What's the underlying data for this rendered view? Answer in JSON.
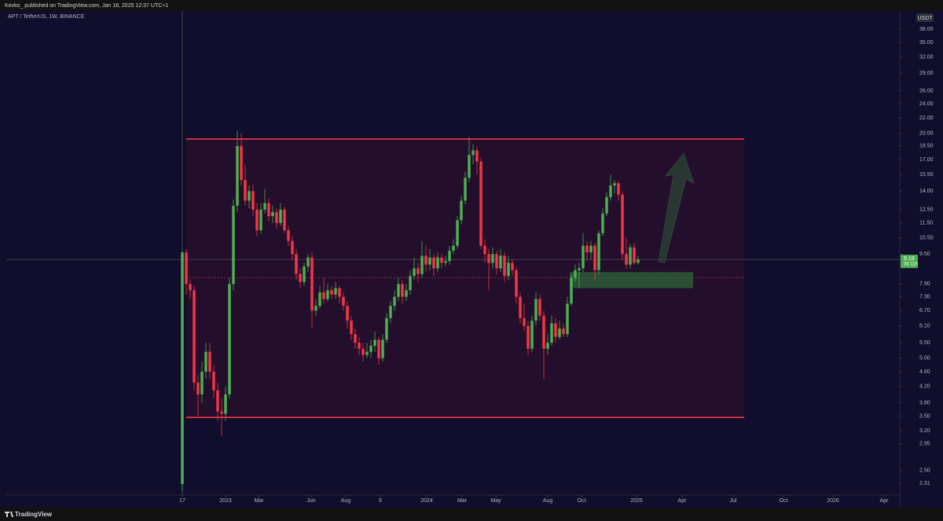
{
  "header": {
    "publisher": "Kevko_ published on TradingView.com, Jan 18, 2025 12:37 UTC+1"
  },
  "footer": {
    "brand": "TradingView"
  },
  "chart_data": {
    "type": "candlestick",
    "title": "APT / TetherUS, 1W, BINANCE",
    "y_unit": "USDT",
    "log_scale": true,
    "up_color": "#4caf50",
    "down_color": "#f23645",
    "countdown": "3d 11h",
    "ylim": [
      2.15,
      42.3
    ],
    "xlim": [
      -44.8,
      182
    ],
    "yticks": [
      {
        "value": 38,
        "label": "38.00"
      },
      {
        "value": 35,
        "label": "35.00"
      },
      {
        "value": 32,
        "label": "32.00"
      },
      {
        "value": 29,
        "label": "29.00"
      },
      {
        "value": 26,
        "label": "26.00"
      },
      {
        "value": 24,
        "label": "24.00"
      },
      {
        "value": 22,
        "label": "22.00"
      },
      {
        "value": 20,
        "label": "20.00"
      },
      {
        "value": 18.5,
        "label": "18.50"
      },
      {
        "value": 17,
        "label": "17.00"
      },
      {
        "value": 15.5,
        "label": "15.50"
      },
      {
        "value": 14,
        "label": "14.00"
      },
      {
        "value": 12.5,
        "label": "12.50"
      },
      {
        "value": 11.5,
        "label": "11.50"
      },
      {
        "value": 10.5,
        "label": "10.50"
      },
      {
        "value": 9.5,
        "label": "9.50"
      },
      {
        "value": 7.9,
        "label": "7.90"
      },
      {
        "value": 7.3,
        "label": "7.30"
      },
      {
        "value": 6.7,
        "label": "6.70"
      },
      {
        "value": 6.1,
        "label": "6.10"
      },
      {
        "value": 5.5,
        "label": "5.50"
      },
      {
        "value": 5,
        "label": "5.00"
      },
      {
        "value": 4.6,
        "label": "4.60"
      },
      {
        "value": 4.2,
        "label": "4.20"
      },
      {
        "value": 3.8,
        "label": "3.80"
      },
      {
        "value": 3.5,
        "label": "3.50"
      },
      {
        "value": 3.2,
        "label": "3.20"
      },
      2.95,
      {
        "value": 2.5,
        "label": "2.50"
      },
      2.31
    ],
    "xticks": [
      {
        "value": 0,
        "label": "17"
      },
      {
        "value": 11,
        "label": "2023"
      },
      {
        "value": 19.5,
        "label": "Mar"
      },
      {
        "value": 32.8,
        "label": "Jun"
      },
      {
        "value": 41.6,
        "label": "Aug"
      },
      {
        "value": 50.4,
        "label": "9"
      },
      {
        "value": 62.2,
        "label": "2024"
      },
      {
        "value": 71.2,
        "label": "Mar"
      },
      {
        "value": 79.8,
        "label": "May"
      },
      {
        "value": 93,
        "label": "Aug"
      },
      {
        "value": 101.6,
        "label": "Oct"
      },
      {
        "value": 115.6,
        "label": "2025"
      },
      {
        "value": 127.2,
        "label": "Apr"
      },
      {
        "value": 140.2,
        "label": "Jul"
      },
      {
        "value": 153,
        "label": "Oct"
      },
      {
        "value": 165.6,
        "label": "2026"
      },
      {
        "value": 178.6,
        "label": "Apr"
      }
    ],
    "levels": {
      "resistance": 19.3,
      "support": 3.47,
      "dashed": 8.22,
      "range_start": 1,
      "range_end": 143,
      "zone_high": 8.5,
      "zone_low": 7.7,
      "zone_start": 98.6,
      "zone_end": 130
    },
    "candles": [
      [
        2.3,
        9.7,
        2.2,
        9.6
      ],
      [
        9.6,
        9.8,
        7.4,
        7.9
      ],
      [
        7.9,
        8.1,
        7.2,
        7.6
      ],
      [
        7.6,
        7.8,
        4.1,
        4.3
      ],
      [
        4.3,
        4.5,
        3.5,
        4.0
      ],
      [
        4.0,
        4.9,
        3.8,
        4.6
      ],
      [
        4.6,
        5.5,
        4.4,
        5.2
      ],
      [
        5.2,
        5.5,
        4.4,
        4.6
      ],
      [
        4.6,
        4.8,
        3.9,
        4.1
      ],
      [
        4.1,
        4.3,
        3.4,
        3.6
      ],
      [
        3.6,
        3.9,
        3.1,
        3.55
      ],
      [
        3.55,
        4.2,
        3.4,
        4.0
      ],
      [
        4.0,
        8.2,
        3.9,
        7.9
      ],
      [
        7.9,
        13.3,
        7.6,
        12.8
      ],
      [
        12.8,
        20.3,
        12.3,
        18.5
      ],
      [
        18.5,
        20.0,
        14.5,
        15.0
      ],
      [
        15.0,
        16.5,
        12.8,
        13.2
      ],
      [
        13.2,
        14.5,
        12.6,
        14.0
      ],
      [
        14.0,
        14.6,
        12.0,
        12.5
      ],
      [
        12.5,
        13.0,
        10.6,
        11.0
      ],
      [
        11.0,
        13.0,
        10.8,
        12.5
      ],
      [
        12.5,
        14.2,
        12.2,
        13.0
      ],
      [
        13.0,
        13.4,
        11.6,
        12.0
      ],
      [
        12.0,
        12.8,
        11.5,
        12.3
      ],
      [
        12.3,
        12.6,
        11.1,
        11.5
      ],
      [
        11.5,
        13.0,
        11.3,
        12.5
      ],
      [
        12.5,
        12.7,
        10.8,
        11.0
      ],
      [
        11.0,
        11.3,
        10.0,
        10.3
      ],
      [
        10.3,
        10.6,
        9.2,
        9.5
      ],
      [
        9.5,
        9.8,
        8.1,
        8.4
      ],
      [
        8.4,
        8.7,
        7.7,
        8.0
      ],
      [
        8.0,
        9.0,
        7.8,
        8.8
      ],
      [
        8.8,
        9.5,
        8.5,
        9.3
      ],
      [
        9.3,
        9.6,
        6.0,
        6.7
      ],
      [
        6.7,
        7.2,
        6.5,
        6.9
      ],
      [
        6.9,
        7.8,
        6.8,
        7.5
      ],
      [
        7.5,
        8.2,
        7.0,
        7.2
      ],
      [
        7.2,
        7.9,
        7.1,
        7.6
      ],
      [
        7.6,
        7.8,
        7.2,
        7.4
      ],
      [
        7.4,
        8.0,
        7.2,
        7.7
      ],
      [
        7.7,
        7.8,
        7.0,
        7.3
      ],
      [
        7.3,
        7.5,
        6.7,
        6.9
      ],
      [
        6.9,
        7.1,
        6.0,
        6.3
      ],
      [
        6.3,
        6.5,
        5.6,
        5.8
      ],
      [
        5.8,
        6.0,
        5.3,
        5.5
      ],
      [
        5.5,
        5.7,
        5.1,
        5.3
      ],
      [
        5.3,
        5.5,
        4.9,
        5.1
      ],
      [
        5.1,
        5.5,
        5.0,
        5.2
      ],
      [
        5.2,
        5.6,
        5.0,
        5.4
      ],
      [
        5.4,
        5.9,
        5.2,
        5.6
      ],
      [
        5.6,
        5.7,
        4.8,
        5.0
      ],
      [
        5.0,
        5.8,
        4.9,
        5.6
      ],
      [
        5.6,
        6.6,
        5.5,
        6.4
      ],
      [
        6.4,
        7.1,
        6.2,
        6.9
      ],
      [
        6.9,
        7.6,
        6.7,
        7.3
      ],
      [
        7.3,
        8.2,
        7.1,
        7.9
      ],
      [
        7.9,
        8.1,
        7.0,
        7.3
      ],
      [
        7.3,
        7.9,
        7.1,
        7.6
      ],
      [
        7.6,
        8.6,
        7.4,
        8.3
      ],
      [
        8.3,
        9.3,
        8.1,
        8.7
      ],
      [
        8.7,
        9.0,
        8.0,
        8.4
      ],
      [
        8.4,
        10.3,
        8.2,
        9.4
      ],
      [
        9.4,
        10.0,
        8.5,
        8.9
      ],
      [
        8.9,
        9.8,
        8.6,
        9.3
      ],
      [
        9.3,
        9.5,
        8.3,
        8.7
      ],
      [
        8.7,
        9.6,
        8.5,
        9.3
      ],
      [
        9.3,
        9.5,
        8.7,
        9.0
      ],
      [
        9.0,
        9.4,
        8.8,
        9.1
      ],
      [
        9.1,
        10.0,
        8.9,
        9.7
      ],
      [
        9.7,
        10.4,
        9.5,
        10.0
      ],
      [
        10.0,
        12.0,
        9.8,
        11.7
      ],
      [
        11.7,
        13.6,
        11.4,
        13.2
      ],
      [
        13.2,
        15.8,
        12.9,
        15.2
      ],
      [
        15.2,
        19.5,
        14.8,
        17.5
      ],
      [
        17.5,
        18.7,
        16.5,
        18.0
      ],
      [
        18.0,
        18.4,
        15.5,
        16.8
      ],
      [
        16.8,
        17.2,
        9.8,
        10.0
      ],
      [
        10.0,
        10.4,
        9.0,
        9.5
      ],
      [
        9.5,
        9.8,
        7.6,
        9.0
      ],
      [
        9.0,
        9.9,
        8.7,
        9.5
      ],
      [
        9.5,
        9.7,
        8.4,
        8.7
      ],
      [
        8.7,
        9.8,
        8.5,
        9.4
      ],
      [
        9.4,
        9.6,
        8.0,
        8.3
      ],
      [
        8.3,
        9.4,
        8.1,
        9.0
      ],
      [
        9.0,
        9.2,
        8.3,
        8.6
      ],
      [
        8.6,
        8.8,
        7.0,
        7.3
      ],
      [
        7.3,
        7.5,
        6.2,
        6.4
      ],
      [
        6.4,
        7.0,
        5.9,
        6.1
      ],
      [
        6.1,
        6.3,
        5.1,
        5.3
      ],
      [
        5.3,
        6.5,
        5.2,
        6.3
      ],
      [
        6.3,
        7.5,
        6.1,
        7.2
      ],
      [
        7.2,
        7.4,
        6.3,
        6.5
      ],
      [
        6.5,
        6.7,
        4.4,
        5.3
      ],
      [
        5.3,
        5.8,
        5.1,
        5.5
      ],
      [
        5.5,
        6.5,
        5.4,
        6.2
      ],
      [
        6.2,
        6.4,
        5.5,
        5.7
      ],
      [
        5.7,
        6.3,
        5.6,
        6.0
      ],
      [
        6.0,
        6.2,
        5.7,
        5.8
      ],
      [
        5.8,
        7.3,
        5.7,
        7.0
      ],
      [
        7.0,
        8.4,
        6.9,
        8.2
      ],
      [
        8.2,
        8.9,
        8.0,
        8.6
      ],
      [
        8.6,
        9.0,
        7.7,
        8.7
      ],
      [
        8.7,
        10.8,
        8.5,
        10.0
      ],
      [
        10.0,
        10.3,
        9.1,
        9.6
      ],
      [
        9.6,
        10.3,
        9.2,
        10.0
      ],
      [
        10.0,
        10.2,
        8.1,
        8.6
      ],
      [
        8.6,
        11.0,
        8.4,
        10.8
      ],
      [
        10.8,
        12.6,
        10.6,
        12.2
      ],
      [
        12.2,
        13.9,
        12.0,
        13.5
      ],
      [
        13.5,
        15.5,
        13.2,
        14.5
      ],
      [
        14.5,
        15.0,
        13.8,
        14.7
      ],
      [
        14.7,
        14.9,
        13.2,
        13.7
      ],
      [
        13.7,
        14.0,
        9.2,
        9.5
      ],
      [
        9.5,
        10.5,
        8.7,
        8.9
      ],
      [
        8.9,
        10.1,
        8.7,
        9.9
      ],
      [
        9.9,
        10.2,
        8.9,
        9.0
      ],
      [
        9.0,
        9.4,
        8.9,
        9.19
      ]
    ]
  }
}
